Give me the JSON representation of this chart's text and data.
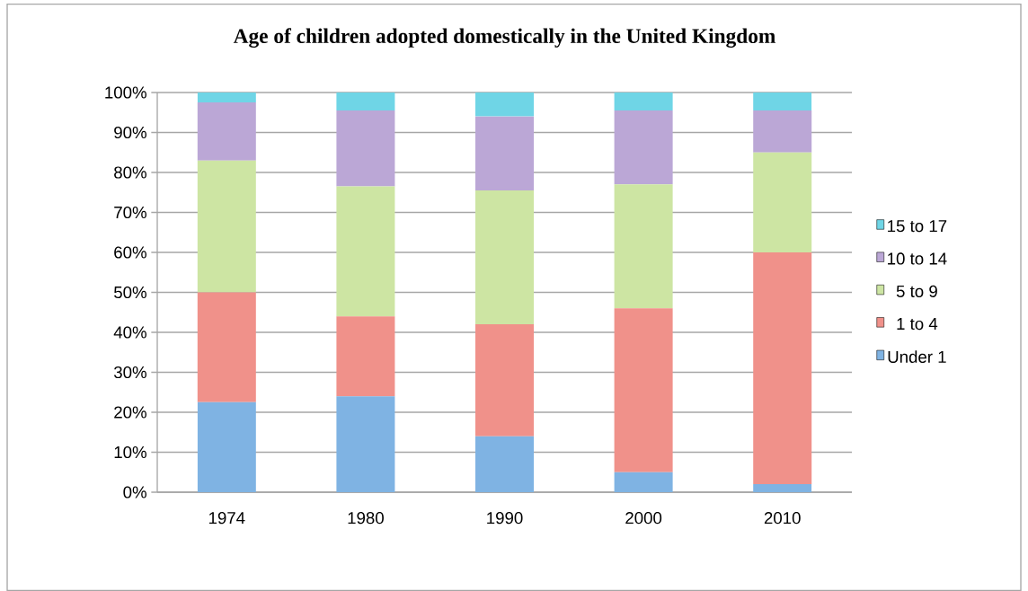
{
  "chart_data": {
    "type": "bar",
    "title": "Age of children adopted domestically in the United Kingdom",
    "categories": [
      "1974",
      "1980",
      "1990",
      "2000",
      "2010"
    ],
    "stacked": true,
    "series": [
      {
        "name": "Under 1",
        "color": "#7fb3e3",
        "values": [
          22.5,
          24,
          14,
          5,
          2
        ]
      },
      {
        "name": "1 to 4",
        "color": "#f0918a",
        "values": [
          27.5,
          20,
          28,
          41,
          58
        ]
      },
      {
        "name": "5 to 9",
        "color": "#cde5a3",
        "values": [
          33,
          32.5,
          33.5,
          31,
          25
        ]
      },
      {
        "name": "10 to 14",
        "color": "#bba7d6",
        "values": [
          14.5,
          19,
          18.5,
          18.5,
          10.5
        ]
      },
      {
        "name": "15 to 17",
        "color": "#6fd5e6",
        "values": [
          2.5,
          4.5,
          6,
          4.5,
          4.5
        ]
      }
    ],
    "ylim": [
      0,
      100
    ],
    "yticks": [
      {
        "value": 0,
        "label": "0%"
      },
      {
        "value": 10,
        "label": "10%"
      },
      {
        "value": 20,
        "label": "20%"
      },
      {
        "value": 30,
        "label": "30%"
      },
      {
        "value": 40,
        "label": "40%"
      },
      {
        "value": 50,
        "label": "50%"
      },
      {
        "value": 60,
        "label": "60%"
      },
      {
        "value": 70,
        "label": "70%"
      },
      {
        "value": 80,
        "label": "80%"
      },
      {
        "value": 90,
        "label": "90%"
      },
      {
        "value": 100,
        "label": "100%"
      }
    ],
    "grid": "y",
    "legend": "right"
  }
}
